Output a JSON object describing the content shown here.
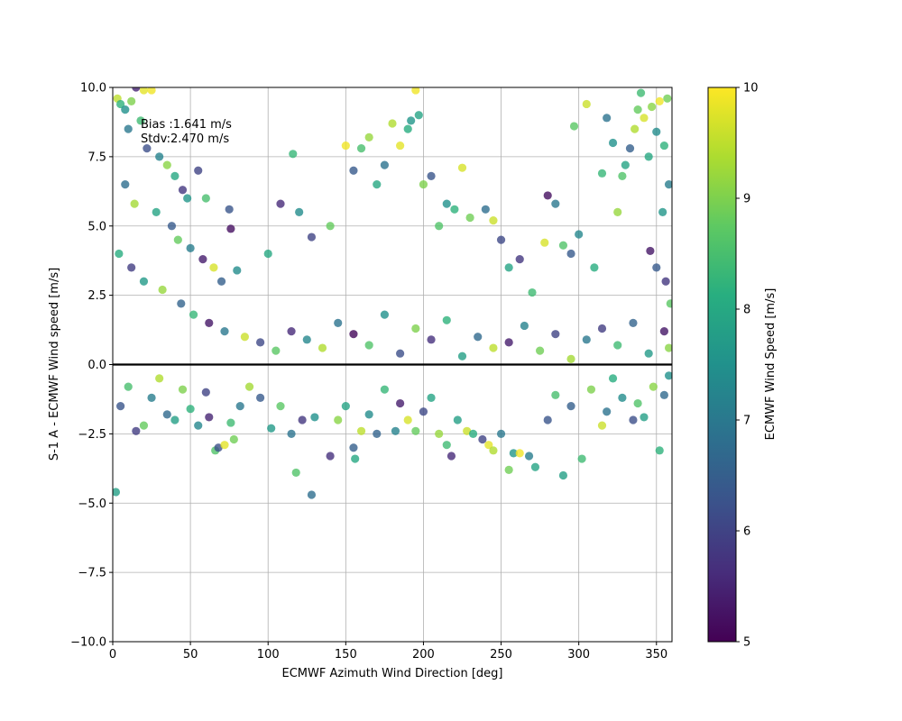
{
  "chart_data": {
    "type": "scatter",
    "title": "",
    "xlabel": "ECMWF Azimuth Wind Direction [deg]",
    "ylabel": "S-1 A - ECMWF Wind speed [m/s]",
    "xlim": [
      0,
      360
    ],
    "ylim": [
      -10,
      10
    ],
    "x_ticks": [
      0,
      50,
      100,
      150,
      200,
      250,
      300,
      350
    ],
    "y_ticks": [
      -10.0,
      -7.5,
      -5.0,
      -2.5,
      0.0,
      2.5,
      5.0,
      7.5,
      10.0
    ],
    "x_tick_labels": [
      "0",
      "50",
      "100",
      "150",
      "200",
      "250",
      "300",
      "350"
    ],
    "y_tick_labels": [
      "−10.0",
      "−7.5",
      "−5.0",
      "−2.5",
      "0.0",
      "2.5",
      "5.0",
      "7.5",
      "10.0"
    ],
    "grid": true,
    "reference_line_y": 0,
    "colormap": "viridis",
    "marker_alpha": 0.8,
    "annotations": [
      "Bias :1.641 m/s",
      "Stdv:2.470 m/s"
    ],
    "colorbar": {
      "label": "ECMWF Wind Speed [m/s]",
      "range": [
        5,
        10
      ],
      "ticks": [
        5,
        6,
        7,
        8,
        9,
        10
      ],
      "tick_labels": [
        "5",
        "6",
        "7",
        "8",
        "9",
        "10"
      ]
    },
    "points": [
      [
        2,
        -4.6,
        7.8
      ],
      [
        3,
        9.6,
        9.5
      ],
      [
        5,
        9.4,
        8.2
      ],
      [
        8,
        9.2,
        7.5
      ],
      [
        12,
        9.5,
        9.0
      ],
      [
        15,
        10.0,
        5.5
      ],
      [
        20,
        9.9,
        9.8
      ],
      [
        25,
        9.9,
        9.9
      ],
      [
        10,
        8.5,
        7.0
      ],
      [
        18,
        8.8,
        8.4
      ],
      [
        22,
        7.8,
        6.2
      ],
      [
        30,
        7.5,
        7.2
      ],
      [
        35,
        7.2,
        9.1
      ],
      [
        40,
        6.8,
        8.0
      ],
      [
        45,
        6.3,
        5.8
      ],
      [
        48,
        6.0,
        7.6
      ],
      [
        55,
        7.0,
        6.0
      ],
      [
        60,
        6.0,
        8.5
      ],
      [
        8,
        6.5,
        6.8
      ],
      [
        14,
        5.8,
        9.3
      ],
      [
        28,
        5.5,
        7.9
      ],
      [
        38,
        5.0,
        6.4
      ],
      [
        42,
        4.5,
        8.8
      ],
      [
        50,
        4.2,
        7.1
      ],
      [
        58,
        3.8,
        5.4
      ],
      [
        65,
        3.5,
        9.7
      ],
      [
        70,
        3.0,
        6.5
      ],
      [
        75,
        5.6,
        6.3
      ],
      [
        76,
        4.9,
        5.2
      ],
      [
        80,
        3.4,
        7.4
      ],
      [
        4,
        4.0,
        8.1
      ],
      [
        12,
        3.5,
        5.9
      ],
      [
        20,
        3.0,
        7.7
      ],
      [
        32,
        2.7,
        9.2
      ],
      [
        44,
        2.2,
        6.6
      ],
      [
        52,
        1.8,
        8.3
      ],
      [
        62,
        1.5,
        5.3
      ],
      [
        72,
        1.2,
        7.0
      ],
      [
        85,
        1.0,
        9.6
      ],
      [
        95,
        0.8,
        6.1
      ],
      [
        105,
        0.5,
        8.7
      ],
      [
        115,
        1.2,
        5.6
      ],
      [
        125,
        0.9,
        7.3
      ],
      [
        135,
        0.6,
        9.4
      ],
      [
        145,
        1.5,
        6.9
      ],
      [
        155,
        1.1,
        5.1
      ],
      [
        165,
        0.7,
        8.6
      ],
      [
        175,
        1.8,
        7.5
      ],
      [
        185,
        0.4,
        6.2
      ],
      [
        195,
        1.3,
        9.0
      ],
      [
        205,
        0.9,
        5.7
      ],
      [
        215,
        1.6,
        8.2
      ],
      [
        225,
        0.3,
        7.8
      ],
      [
        235,
        1.0,
        6.7
      ],
      [
        245,
        0.6,
        9.5
      ],
      [
        255,
        0.8,
        5.4
      ],
      [
        265,
        1.4,
        7.2
      ],
      [
        275,
        0.5,
        8.9
      ],
      [
        285,
        1.1,
        6.0
      ],
      [
        295,
        0.2,
        9.3
      ],
      [
        305,
        0.9,
        7.0
      ],
      [
        315,
        1.3,
        5.9
      ],
      [
        325,
        0.7,
        8.4
      ],
      [
        335,
        1.5,
        6.6
      ],
      [
        345,
        0.4,
        7.7
      ],
      [
        355,
        1.2,
        5.3
      ],
      [
        358,
        0.6,
        9.1
      ],
      [
        100,
        4.0,
        8.0
      ],
      [
        108,
        5.8,
        5.6
      ],
      [
        116,
        7.6,
        8.3
      ],
      [
        120,
        5.5,
        7.4
      ],
      [
        128,
        4.6,
        6.0
      ],
      [
        140,
        5.0,
        8.8
      ],
      [
        150,
        7.9,
        9.9
      ],
      [
        155,
        7.0,
        6.4
      ],
      [
        160,
        7.8,
        8.5
      ],
      [
        165,
        8.2,
        9.2
      ],
      [
        170,
        6.5,
        8.0
      ],
      [
        175,
        7.2,
        6.9
      ],
      [
        180,
        8.7,
        9.4
      ],
      [
        185,
        7.9,
        9.8
      ],
      [
        190,
        8.5,
        8.1
      ],
      [
        192,
        8.8,
        7.6
      ],
      [
        195,
        9.9,
        9.9
      ],
      [
        197,
        9.0,
        7.9
      ],
      [
        200,
        6.5,
        9.0
      ],
      [
        205,
        6.8,
        6.3
      ],
      [
        210,
        5.0,
        8.6
      ],
      [
        215,
        5.8,
        7.5
      ],
      [
        220,
        5.6,
        8.2
      ],
      [
        225,
        7.1,
        9.7
      ],
      [
        230,
        5.3,
        8.9
      ],
      [
        240,
        5.6,
        6.8
      ],
      [
        245,
        5.2,
        9.6
      ],
      [
        250,
        4.5,
        6.1
      ],
      [
        255,
        3.5,
        7.9
      ],
      [
        262,
        3.8,
        5.8
      ],
      [
        270,
        2.6,
        8.4
      ],
      [
        280,
        6.1,
        5.2
      ],
      [
        278,
        4.4,
        9.7
      ],
      [
        285,
        5.8,
        7.0
      ],
      [
        290,
        4.3,
        8.6
      ],
      [
        295,
        4.0,
        6.4
      ],
      [
        297,
        8.6,
        8.7
      ],
      [
        300,
        4.7,
        7.3
      ],
      [
        305,
        9.4,
        9.6
      ],
      [
        310,
        3.5,
        8.1
      ],
      [
        315,
        6.9,
        8.3
      ],
      [
        318,
        8.9,
        6.9
      ],
      [
        322,
        8.0,
        7.5
      ],
      [
        325,
        5.5,
        9.2
      ],
      [
        328,
        6.8,
        8.6
      ],
      [
        330,
        7.2,
        7.9
      ],
      [
        333,
        7.8,
        6.5
      ],
      [
        336,
        8.5,
        9.4
      ],
      [
        338,
        9.2,
        8.8
      ],
      [
        340,
        9.8,
        8.4
      ],
      [
        342,
        8.9,
        9.7
      ],
      [
        345,
        7.5,
        8.0
      ],
      [
        347,
        9.3,
        9.1
      ],
      [
        350,
        8.4,
        7.4
      ],
      [
        352,
        9.5,
        9.9
      ],
      [
        355,
        7.9,
        8.2
      ],
      [
        357,
        9.6,
        8.9
      ],
      [
        358,
        6.5,
        7.1
      ],
      [
        346,
        4.1,
        5.3
      ],
      [
        350,
        3.5,
        6.4
      ],
      [
        354,
        5.5,
        7.6
      ],
      [
        356,
        3.0,
        5.8
      ],
      [
        359,
        2.2,
        8.7
      ],
      [
        5,
        -1.5,
        6.3
      ],
      [
        10,
        -0.8,
        8.5
      ],
      [
        15,
        -2.4,
        5.9
      ],
      [
        20,
        -2.2,
        8.8
      ],
      [
        25,
        -1.2,
        7.1
      ],
      [
        30,
        -0.5,
        9.4
      ],
      [
        35,
        -1.8,
        6.7
      ],
      [
        40,
        -2.0,
        7.8
      ],
      [
        45,
        -0.9,
        9.0
      ],
      [
        50,
        -1.6,
        8.2
      ],
      [
        55,
        -2.2,
        7.3
      ],
      [
        60,
        -1.0,
        6.0
      ],
      [
        62,
        -1.9,
        5.5
      ],
      [
        66,
        -3.1,
        8.6
      ],
      [
        68,
        -3.0,
        6.2
      ],
      [
        72,
        -2.9,
        9.8
      ],
      [
        76,
        -2.1,
        8.4
      ],
      [
        78,
        -2.7,
        8.9
      ],
      [
        82,
        -1.5,
        7.0
      ],
      [
        88,
        -0.8,
        9.3
      ],
      [
        95,
        -1.2,
        6.4
      ],
      [
        102,
        -2.3,
        7.7
      ],
      [
        108,
        -1.5,
        8.7
      ],
      [
        115,
        -2.5,
        6.9
      ],
      [
        118,
        -3.9,
        8.6
      ],
      [
        122,
        -2.0,
        5.8
      ],
      [
        128,
        -4.7,
        6.8
      ],
      [
        130,
        -1.9,
        7.5
      ],
      [
        140,
        -3.3,
        5.7
      ],
      [
        145,
        -2.0,
        9.1
      ],
      [
        150,
        -1.5,
        7.9
      ],
      [
        155,
        -3.0,
        6.5
      ],
      [
        156,
        -3.4,
        8.0
      ],
      [
        160,
        -2.4,
        9.5
      ],
      [
        165,
        -1.8,
        7.4
      ],
      [
        170,
        -2.5,
        6.6
      ],
      [
        175,
        -0.9,
        8.3
      ],
      [
        182,
        -2.4,
        7.2
      ],
      [
        185,
        -1.4,
        5.4
      ],
      [
        190,
        -2.0,
        9.7
      ],
      [
        195,
        -2.4,
        8.8
      ],
      [
        200,
        -1.7,
        6.1
      ],
      [
        205,
        -1.2,
        7.9
      ],
      [
        210,
        -2.5,
        9.2
      ],
      [
        215,
        -2.9,
        8.4
      ],
      [
        218,
        -3.3,
        5.6
      ],
      [
        222,
        -2.0,
        7.8
      ],
      [
        228,
        -2.4,
        9.6
      ],
      [
        232,
        -2.5,
        8.1
      ],
      [
        238,
        -2.7,
        6.0
      ],
      [
        242,
        -2.9,
        9.8
      ],
      [
        245,
        -3.1,
        9.4
      ],
      [
        250,
        -2.5,
        7.0
      ],
      [
        255,
        -3.8,
        8.9
      ],
      [
        258,
        -3.2,
        7.6
      ],
      [
        262,
        -3.2,
        9.9
      ],
      [
        268,
        -3.3,
        7.1
      ],
      [
        272,
        -3.7,
        7.9
      ],
      [
        280,
        -2.0,
        6.3
      ],
      [
        285,
        -1.1,
        8.5
      ],
      [
        290,
        -4.0,
        7.8
      ],
      [
        295,
        -1.5,
        6.5
      ],
      [
        302,
        -3.4,
        8.4
      ],
      [
        308,
        -0.9,
        9.0
      ],
      [
        315,
        -2.2,
        9.6
      ],
      [
        318,
        -1.7,
        6.9
      ],
      [
        322,
        -0.5,
        8.1
      ],
      [
        328,
        -1.2,
        7.4
      ],
      [
        335,
        -2.0,
        6.2
      ],
      [
        338,
        -1.4,
        8.6
      ],
      [
        342,
        -1.9,
        7.8
      ],
      [
        348,
        -0.8,
        9.1
      ],
      [
        352,
        -3.1,
        8.2
      ],
      [
        355,
        -1.1,
        6.7
      ],
      [
        358,
        -0.4,
        7.5
      ]
    ]
  }
}
